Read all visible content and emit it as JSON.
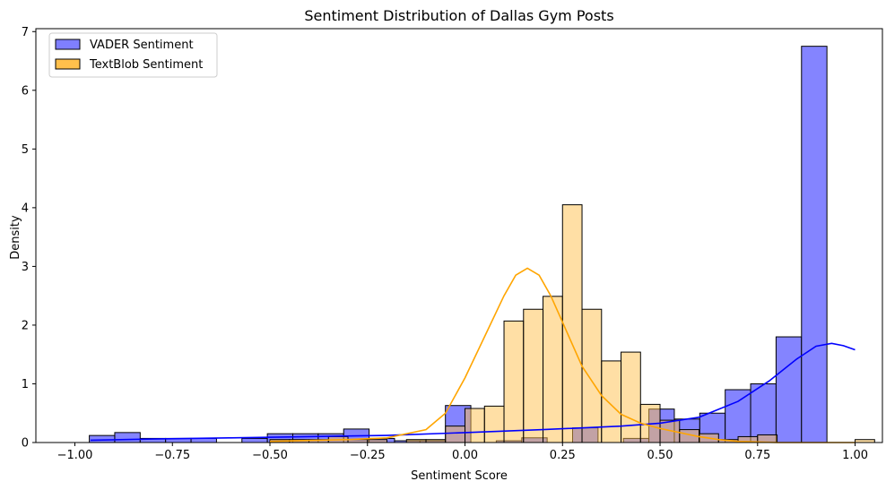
{
  "chart_data": {
    "type": "histogram",
    "title": "Sentiment Distribution of Dallas Gym Posts",
    "xlabel": "Sentiment Score",
    "ylabel": "Density",
    "xlim": [
      -1.1,
      1.07
    ],
    "ylim": [
      0,
      7.05
    ],
    "xticks": [
      -1.0,
      -0.75,
      -0.5,
      -0.25,
      0.0,
      0.25,
      0.5,
      0.75,
      1.0
    ],
    "xtick_labels": [
      "−1.00",
      "−0.75",
      "−0.50",
      "−0.25",
      "0.00",
      "0.25",
      "0.50",
      "0.75",
      "1.00"
    ],
    "yticks": [
      0,
      1,
      2,
      3,
      4,
      5,
      6,
      7
    ],
    "ytick_labels": [
      "0",
      "1",
      "2",
      "3",
      "4",
      "5",
      "6",
      "7"
    ],
    "legend_position": "top-left",
    "series": [
      {
        "name": "VADER Sentiment",
        "fill": "#7f7fff",
        "line_color": "#0000ff",
        "bin_start": -0.963,
        "bin_width": 0.0652,
        "values": [
          0.12,
          0.17,
          0.07,
          0.07,
          0.07,
          0.0,
          0.07,
          0.15,
          0.15,
          0.15,
          0.23,
          0.07,
          0.03,
          0.03,
          0.63,
          0.0,
          0.03,
          0.08,
          0.0,
          0.25,
          0.0,
          0.07,
          0.57,
          0.4,
          0.5,
          0.9,
          1.0,
          1.8,
          6.75
        ],
        "kde_x": [
          -0.96,
          -0.8,
          -0.6,
          -0.4,
          -0.2,
          0.0,
          0.2,
          0.4,
          0.5,
          0.6,
          0.7,
          0.78,
          0.85,
          0.9,
          0.94,
          0.97,
          1.0
        ],
        "kde_y": [
          0.04,
          0.06,
          0.08,
          0.1,
          0.12,
          0.17,
          0.22,
          0.28,
          0.33,
          0.43,
          0.7,
          1.05,
          1.42,
          1.64,
          1.69,
          1.65,
          1.58
        ]
      },
      {
        "name": "TextBlob Sentiment",
        "fill": "#ffc04c",
        "line_color": "#ffa500",
        "bin_start": -0.5,
        "bin_width": 0.05,
        "values": [
          0.05,
          0.05,
          0.05,
          0.1,
          0.05,
          0.05,
          0.0,
          0.05,
          0.05,
          0.28,
          0.58,
          0.62,
          2.07,
          2.27,
          2.49,
          4.05,
          2.27,
          1.39,
          1.54,
          0.65,
          0.38,
          0.22,
          0.15,
          0.05,
          0.1,
          0.13,
          0.0,
          0.0,
          0.0,
          0.0,
          0.05
        ],
        "kde_x": [
          -0.5,
          -0.3,
          -0.2,
          -0.1,
          -0.05,
          0.0,
          0.05,
          0.1,
          0.13,
          0.16,
          0.19,
          0.22,
          0.25,
          0.3,
          0.35,
          0.4,
          0.45,
          0.5,
          0.55,
          0.6,
          0.65,
          0.7,
          0.8,
          1.0
        ],
        "kde_y": [
          0.02,
          0.05,
          0.08,
          0.22,
          0.5,
          1.1,
          1.8,
          2.5,
          2.85,
          2.97,
          2.85,
          2.5,
          2.05,
          1.3,
          0.8,
          0.48,
          0.33,
          0.24,
          0.17,
          0.1,
          0.05,
          0.02,
          0.0,
          0.0
        ]
      }
    ]
  }
}
